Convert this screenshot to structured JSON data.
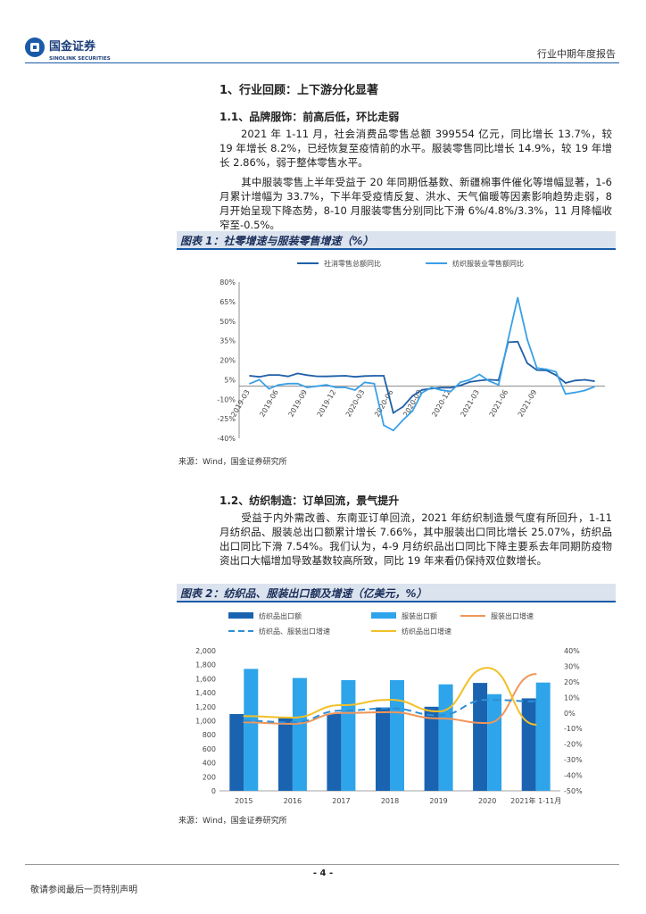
{
  "header": {
    "brand_cn": "国金证券",
    "brand_en": "SINOLINK SECURITIES",
    "report_type": "行业中期年度报告"
  },
  "section1": {
    "title": "1、行业回顾：上下游分化显著",
    "sub1_title": "1.1、品牌服饰：前高后低，环比走弱",
    "sub1_p1": "2021 年 1-11 月，社会消费品零售总额 399554 亿元，同比增长 13.7%，较 19 年增长 8.2%，已经恢复至疫情前的水平。服装零售同比增长 14.9%，较 19 年增长 2.86%，弱于整体零售水平。",
    "sub1_p2": "其中服装零售上半年受益于 20 年同期低基数、新疆棉事件催化等增幅显著，1-6 月累计增幅为 33.7%，下半年受疫情反复、洪水、天气偏暖等因素影响趋势走弱，8 月开始呈现下降态势，8-10 月服装零售分别同比下滑 6%/4.8%/3.3%，11 月降幅收窄至-0.5%。",
    "sub2_title": "1.2、纺织制造：订单回流，景气提升",
    "sub2_p1": "受益于内外需改善、东南亚订单回流，2021 年纺织制造景气度有所回升，1-11 月纺织品、服装总出口额累计增长 7.66%，其中服装出口同比增长 25.07%，纺织品出口同比下滑 7.54%。我们认为，4-9 月纺织品出口同比下降主要系去年同期防疫物资出口大幅增加导致基数较高所致，同比 19 年来看仍保持双位数增长。"
  },
  "figure1": {
    "caption": "图表 1：社零增速与服装零售增速（%）",
    "source": "来源：Wind，国金证券研究所"
  },
  "figure2": {
    "caption": "图表 2：纺织品、服装出口额及增速（亿美元，%）",
    "source": "来源：Wind，国金证券研究所"
  },
  "chart_data": [
    {
      "type": "line",
      "title": "",
      "xlabel": "",
      "ylabel": "",
      "ylim": [
        -40,
        80
      ],
      "yticks": [
        "80%",
        "65%",
        "50%",
        "35%",
        "20%",
        "5%",
        "-10%",
        "-25%",
        "-40%"
      ],
      "xticks": [
        "2019-03",
        "2019-06",
        "2019-09",
        "2019-12",
        "2020-03",
        "2020-06",
        "2020-09",
        "2020-12",
        "2021-03",
        "2021-06",
        "2021-09"
      ],
      "legend_position": "top",
      "grid": false,
      "series": [
        {
          "name": "社消零售总额同比",
          "color": "#1f5fa8",
          "values": [
            8.0,
            7.2,
            8.6,
            8.6,
            7.5,
            9.8,
            8.5,
            7.6,
            7.5,
            7.8,
            8.0,
            7.2,
            7.8,
            8.0,
            8.0,
            -20.5,
            -15.8,
            -7.5,
            -2.8,
            -1.8,
            -1.1,
            -1.1,
            0.5,
            3.3,
            4.3,
            5.0,
            4.6,
            33.8,
            34.2,
            17.7,
            12.4,
            12.1,
            8.5,
            2.5,
            4.4,
            4.9,
            3.9
          ]
        },
        {
          "name": "纺织服装业零售额同比",
          "color": "#3aa0e6",
          "values": [
            2.0,
            5.0,
            -2.0,
            1.0,
            2.0,
            2.0,
            -1.0,
            0.0,
            1.0,
            -1.0,
            -1.0,
            -3.0,
            3.0,
            2.0,
            -30.0,
            -34.0,
            -26.0,
            -19.0,
            -5.0,
            -1.0,
            -3.0,
            -4.0,
            3.0,
            5.0,
            9.0,
            4.0,
            1.0,
            36.0,
            68.0,
            36.0,
            14.0,
            13.0,
            11.0,
            -6.0,
            -4.8,
            -3.3,
            -0.5
          ]
        }
      ]
    },
    {
      "type": "bar",
      "title": "",
      "xlabel": "",
      "ylabel": "",
      "categories": [
        "2015",
        "2016",
        "2017",
        "2018",
        "2019",
        "2020",
        "2021年 1-11月"
      ],
      "ylim": [
        0,
        2000
      ],
      "y2lim": [
        -50,
        40
      ],
      "yticks": [
        "2,000",
        "1,800",
        "1,600",
        "1,400",
        "1,200",
        "1,000",
        "800",
        "600",
        "400",
        "200",
        "0"
      ],
      "y2ticks": [
        "40%",
        "30%",
        "20%",
        "10%",
        "0%",
        "-10%",
        "-20%",
        "-30%",
        "-40%",
        "-50%"
      ],
      "legend_position": "top",
      "grid": false,
      "series": [
        {
          "name": "纺织品出口额",
          "kind": "bar",
          "color": "#1a63b0",
          "values": [
            1095,
            1050,
            1100,
            1190,
            1200,
            1540,
            1320
          ]
        },
        {
          "name": "服装出口额",
          "kind": "bar",
          "color": "#2ea4ea",
          "values": [
            1740,
            1610,
            1580,
            1580,
            1520,
            1380,
            1545
          ]
        },
        {
          "name": "服装出口增速",
          "kind": "line",
          "color": "#f0965a",
          "values": [
            -6,
            -7,
            0,
            0.5,
            -3.5,
            -6.5,
            25
          ]
        },
        {
          "name": "纺织品、服装出口增速",
          "kind": "line",
          "dashed": true,
          "color": "#2e8fd6",
          "values": [
            -5,
            -6,
            1.5,
            3,
            -1.5,
            8.5,
            7.5
          ]
        },
        {
          "name": "纺织品出口增速",
          "kind": "line",
          "color": "#f2c028",
          "values": [
            -2,
            -3,
            5,
            8.5,
            1,
            29,
            -7.5
          ]
        }
      ]
    }
  ],
  "footer": {
    "page_number": "- 4 -",
    "note": "敬请参阅最后一页特别声明"
  }
}
